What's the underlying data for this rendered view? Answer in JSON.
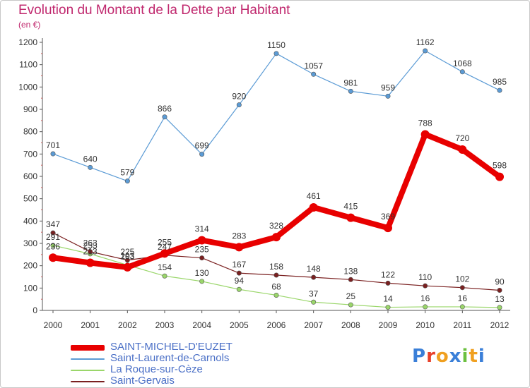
{
  "header": {
    "title": "Evolution du Montant de la Dette par Habitant",
    "subtitle": "(en €)"
  },
  "brand": {
    "text": "Proxiti",
    "letter_colors": [
      "#3a7fd8",
      "#e8402a",
      "#f0a020",
      "#3a7fd8",
      "#6cc040",
      "#f0a020",
      "#3a7fd8"
    ]
  },
  "chart_data": {
    "type": "line",
    "title": "Evolution du Montant de la Dette par Habitant",
    "subtitle": "(en €)",
    "x": [
      "2000",
      "2001",
      "2002",
      "2003",
      "2004",
      "2005",
      "2006",
      "2007",
      "2008",
      "2009",
      "2010",
      "2011",
      "2012"
    ],
    "ylim": [
      0,
      1200
    ],
    "yticks": [
      0,
      100,
      200,
      300,
      400,
      500,
      600,
      700,
      800,
      900,
      1000,
      1100,
      1200
    ],
    "grid": false,
    "legend_position": "bottom-left",
    "series": [
      {
        "name": "SAINT-MICHEL-D'EUZET",
        "color": "#e80000",
        "emphasis": true,
        "values": [
          236,
          213,
          193,
          255,
          314,
          283,
          328,
          461,
          415,
          369,
          788,
          720,
          598
        ],
        "labels": [
          "236",
          "213",
          "193",
          "255",
          "314",
          "283",
          "328",
          "461",
          "415",
          "369",
          "788",
          "720",
          "598"
        ]
      },
      {
        "name": "Saint-Laurent-de-Carnols",
        "color": "#5b9bd5",
        "emphasis": false,
        "values": [
          701,
          640,
          579,
          866,
          699,
          920,
          1150,
          1057,
          981,
          959,
          1162,
          1068,
          985
        ],
        "labels": [
          "701",
          "640",
          "579",
          "866",
          "699",
          "920",
          "1150",
          "1057",
          "981",
          "959",
          "1162",
          "1068",
          "985"
        ]
      },
      {
        "name": "La Roque-sur-Cèze",
        "color": "#9ad66a",
        "emphasis": false,
        "values": [
          291,
          253,
          203,
          154,
          130,
          94,
          68,
          37,
          25,
          14,
          16,
          16,
          13
        ],
        "labels": [
          "291",
          "253",
          "203",
          "154",
          "130",
          "94",
          "68",
          "37",
          "25",
          "14",
          "16",
          "16",
          "13"
        ]
      },
      {
        "name": "Saint-Gervais",
        "color": "#7a2020",
        "emphasis": false,
        "values": [
          347,
          263,
          225,
          247,
          235,
          167,
          158,
          148,
          138,
          122,
          110,
          102,
          90
        ],
        "labels": [
          "347",
          "263",
          "225",
          "247",
          "235",
          "167",
          "158",
          "148",
          "138",
          "122",
          "110",
          "102",
          "90"
        ]
      }
    ]
  }
}
